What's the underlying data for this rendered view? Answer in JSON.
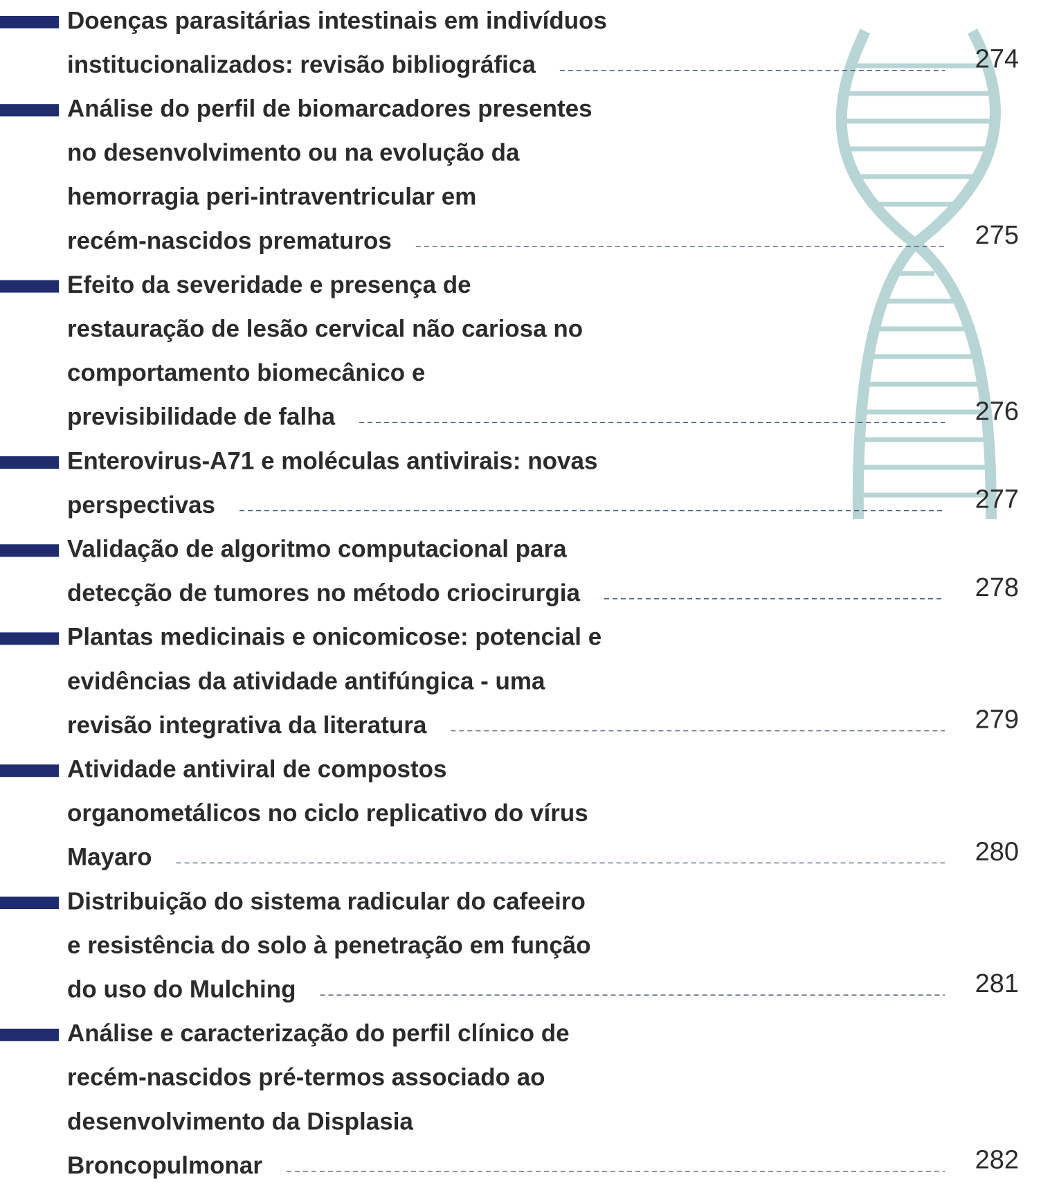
{
  "entries": [
    {
      "lines": [
        "Doenças parasitárias intestinais em indivíduos",
        "institucionalizados: revisão bibliográfica"
      ],
      "page": "274"
    },
    {
      "lines": [
        "Análise do perfil de biomarcadores presentes",
        "no desenvolvimento ou na evolução da",
        "hemorragia peri-intraventricular em",
        "recém-nascidos prematuros"
      ],
      "page": "275"
    },
    {
      "lines": [
        "Efeito da severidade e presença de",
        "restauração de lesão cervical não cariosa no",
        "comportamento biomecânico e",
        "previsibilidade de falha"
      ],
      "page": "276"
    },
    {
      "lines": [
        "Enterovirus-A71 e moléculas antivirais: novas",
        "perspectivas"
      ],
      "page": "277"
    },
    {
      "lines": [
        "Validação de algoritmo computacional para",
        "detecção de tumores no método criocirurgia"
      ],
      "page": "278"
    },
    {
      "lines": [
        "Plantas medicinais e onicomicose: potencial e",
        "evidências da atividade antifúngica - uma",
        "revisão integrativa da literatura"
      ],
      "page": "279"
    },
    {
      "lines": [
        "Atividade antiviral de compostos",
        "organometálicos no ciclo replicativo do vírus",
        "Mayaro"
      ],
      "page": "280"
    },
    {
      "lines": [
        "Distribuição do sistema radicular do cafeeiro",
        "e resistência do solo à penetração em função",
        "do uso do Mulching"
      ],
      "page": "281"
    },
    {
      "lines": [
        "Análise e caracterização do perfil clínico de",
        "recém-nascidos pré-termos associado ao",
        "desenvolvimento da Displasia",
        "Broncopulmonar"
      ],
      "page": "282"
    }
  ]
}
